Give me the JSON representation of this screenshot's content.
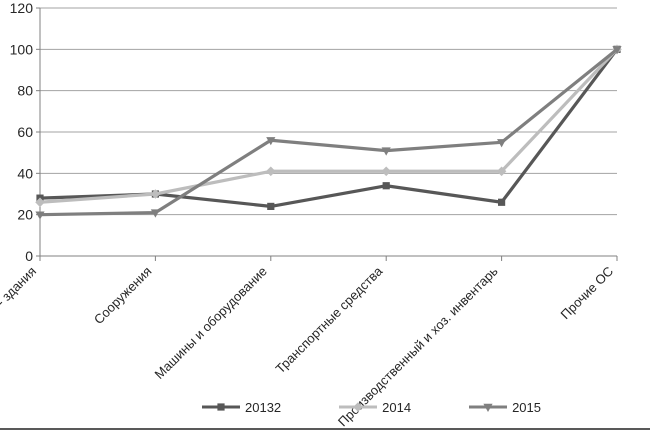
{
  "chart_data": {
    "type": "line",
    "title": "",
    "xlabel": "",
    "ylabel": "",
    "categories": [
      "- здания",
      "Сооружения",
      "Машины и оборудование",
      "Транспортные средства",
      "Производственный и хоз. инвентарь",
      "Прочие ОС"
    ],
    "series": [
      {
        "name": "20132",
        "color": "#575757",
        "marker": "square",
        "values": [
          28,
          30,
          24,
          34,
          26,
          100
        ]
      },
      {
        "name": "2014",
        "color": "#bdbdbd",
        "marker": "diamond",
        "values": [
          26,
          30,
          41,
          41,
          41,
          100
        ]
      },
      {
        "name": "2015",
        "color": "#7f7f7f",
        "marker": "triangle-down",
        "values": [
          20,
          21,
          56,
          51,
          55,
          100
        ]
      }
    ],
    "ylim": [
      0,
      120
    ],
    "ytick_interval": 20,
    "ytick_labels": [
      "0",
      "20",
      "40",
      "60",
      "80",
      "100",
      "120"
    ],
    "grid": true,
    "legend_position": "bottom"
  },
  "colors": {
    "gridline": "#a3a3a3",
    "axis": "#808080",
    "text": "#262626",
    "border_bottom": "#595959",
    "background": "#ffffff"
  }
}
